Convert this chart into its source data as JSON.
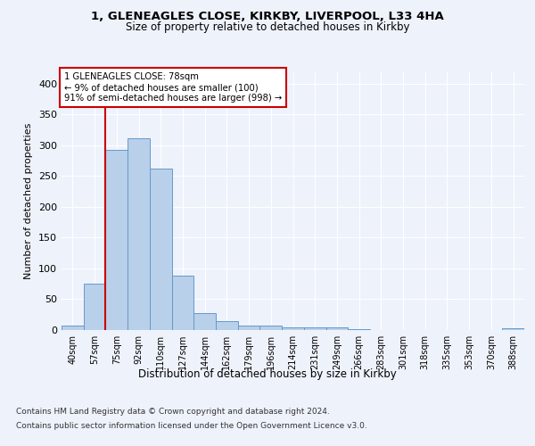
{
  "title_line1": "1, GLENEAGLES CLOSE, KIRKBY, LIVERPOOL, L33 4HA",
  "title_line2": "Size of property relative to detached houses in Kirkby",
  "xlabel": "Distribution of detached houses by size in Kirkby",
  "ylabel": "Number of detached properties",
  "footer_line1": "Contains HM Land Registry data © Crown copyright and database right 2024.",
  "footer_line2": "Contains public sector information licensed under the Open Government Licence v3.0.",
  "bin_labels": [
    "40sqm",
    "57sqm",
    "75sqm",
    "92sqm",
    "110sqm",
    "127sqm",
    "144sqm",
    "162sqm",
    "179sqm",
    "196sqm",
    "214sqm",
    "231sqm",
    "249sqm",
    "266sqm",
    "283sqm",
    "301sqm",
    "318sqm",
    "335sqm",
    "353sqm",
    "370sqm",
    "388sqm"
  ],
  "bar_heights": [
    7,
    75,
    293,
    312,
    262,
    88,
    27,
    14,
    7,
    7,
    4,
    4,
    4,
    2,
    0,
    0,
    0,
    0,
    0,
    0,
    3
  ],
  "bar_color": "#b8d0ea",
  "bar_edge_color": "#6699cc",
  "property_line_x": 2.0,
  "annotation_text_line1": "1 GLENEAGLES CLOSE: 78sqm",
  "annotation_text_line2": "← 9% of detached houses are smaller (100)",
  "annotation_text_line3": "91% of semi-detached houses are larger (998) →",
  "red_line_color": "#cc0000",
  "annotation_box_color": "#ffffff",
  "annotation_box_edge": "#cc0000",
  "ylim": [
    0,
    420
  ],
  "yticks": [
    0,
    50,
    100,
    150,
    200,
    250,
    300,
    350,
    400
  ],
  "background_color": "#eef2fb",
  "grid_color": "#ffffff"
}
